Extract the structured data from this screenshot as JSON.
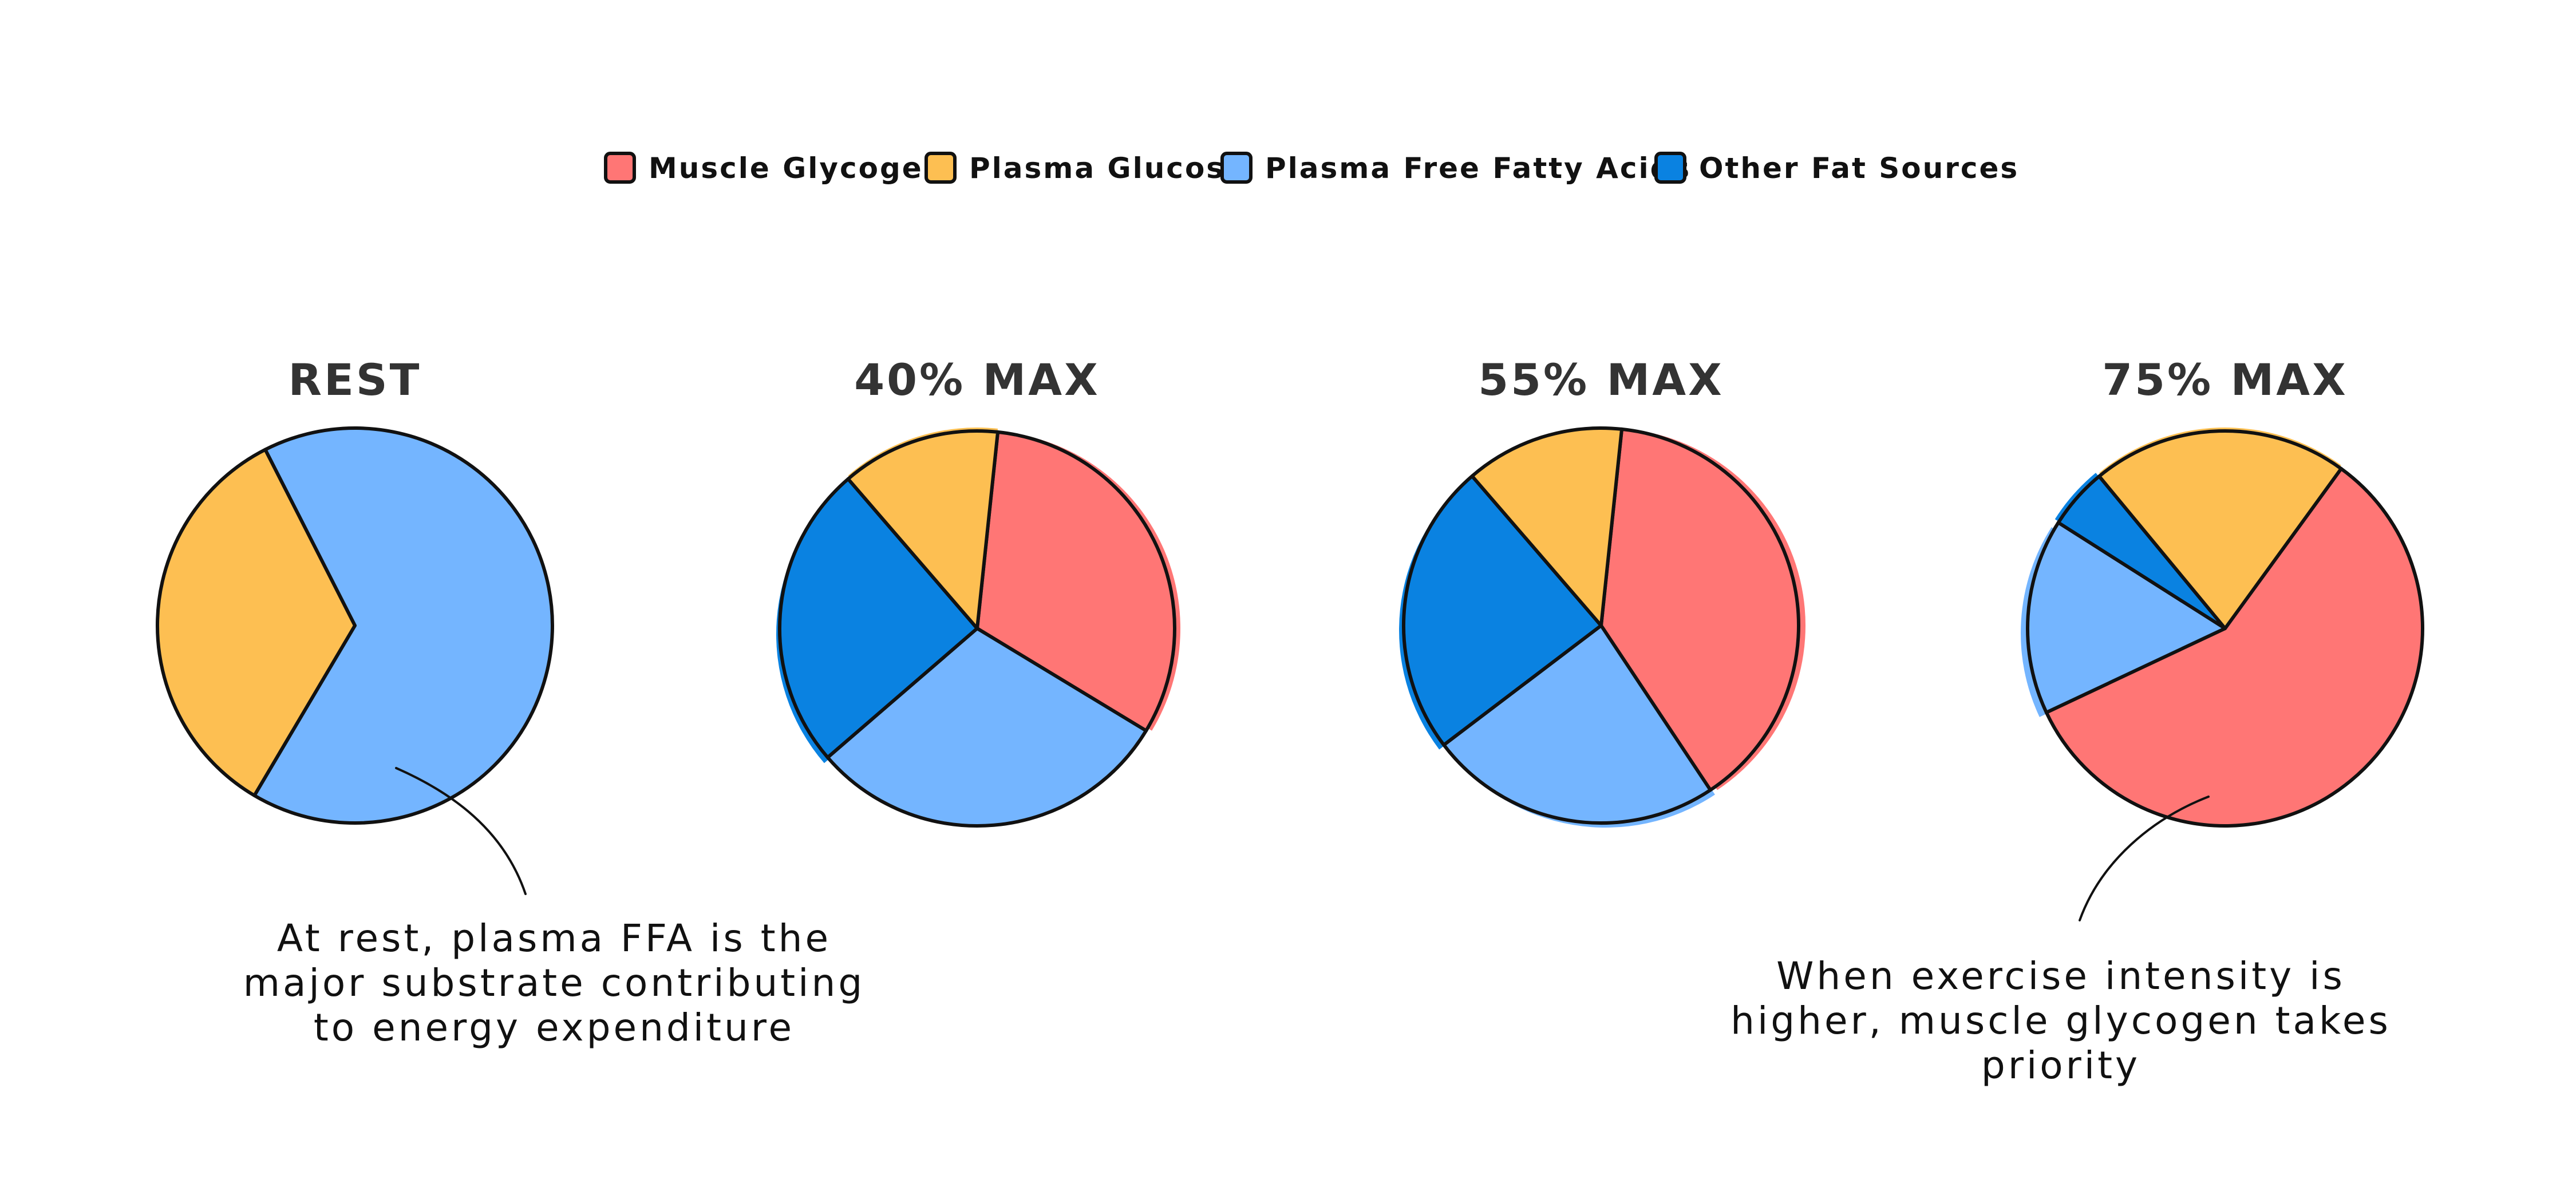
{
  "colors": {
    "muscle_glycogen": "#ff7675",
    "plasma_glucose": "#fdbf52",
    "plasma_ffa": "#74b5ff",
    "other_fat": "#0a82e1",
    "outline": "#111111",
    "title": "#333333"
  },
  "legend": [
    {
      "label": "Muscle Glycogen",
      "color": "#ff7675"
    },
    {
      "label": "Plasma Glucose",
      "color": "#fdbf52"
    },
    {
      "label": "Plasma Free Fatty Acids",
      "color": "#74b5ff"
    },
    {
      "label": "Other Fat Sources",
      "color": "#0a82e1"
    }
  ],
  "chart_data": [
    {
      "type": "pie",
      "title": "REST",
      "slices": [
        {
          "label": "Muscle Glycogen",
          "value": 0
        },
        {
          "label": "Plasma Glucose",
          "value": 34
        },
        {
          "label": "Plasma Free Fatty Acids",
          "value": 66
        },
        {
          "label": "Other Fat Sources",
          "value": 0
        }
      ]
    },
    {
      "type": "pie",
      "title": "40% MAX",
      "slices": [
        {
          "label": "Muscle Glycogen",
          "value": 32
        },
        {
          "label": "Plasma Glucose",
          "value": 13
        },
        {
          "label": "Plasma Free Fatty Acids",
          "value": 30
        },
        {
          "label": "Other Fat Sources",
          "value": 25
        }
      ]
    },
    {
      "type": "pie",
      "title": "55% MAX",
      "slices": [
        {
          "label": "Muscle Glycogen",
          "value": 39
        },
        {
          "label": "Plasma Glucose",
          "value": 13
        },
        {
          "label": "Plasma Free Fatty Acids",
          "value": 24
        },
        {
          "label": "Other Fat Sources",
          "value": 24
        }
      ]
    },
    {
      "type": "pie",
      "title": "75% MAX",
      "slices": [
        {
          "label": "Muscle Glycogen",
          "value": 58
        },
        {
          "label": "Plasma Glucose",
          "value": 21
        },
        {
          "label": "Plasma Free Fatty Acids",
          "value": 16
        },
        {
          "label": "Other Fat Sources",
          "value": 5
        }
      ]
    }
  ],
  "annotations": {
    "rest": {
      "lines": [
        "At rest, plasma FFA is the",
        "major substrate contributing",
        "to energy expenditure"
      ]
    },
    "high_intensity": {
      "lines": [
        "When exercise intensity is",
        "higher, muscle glycogen takes",
        "priority"
      ]
    }
  }
}
